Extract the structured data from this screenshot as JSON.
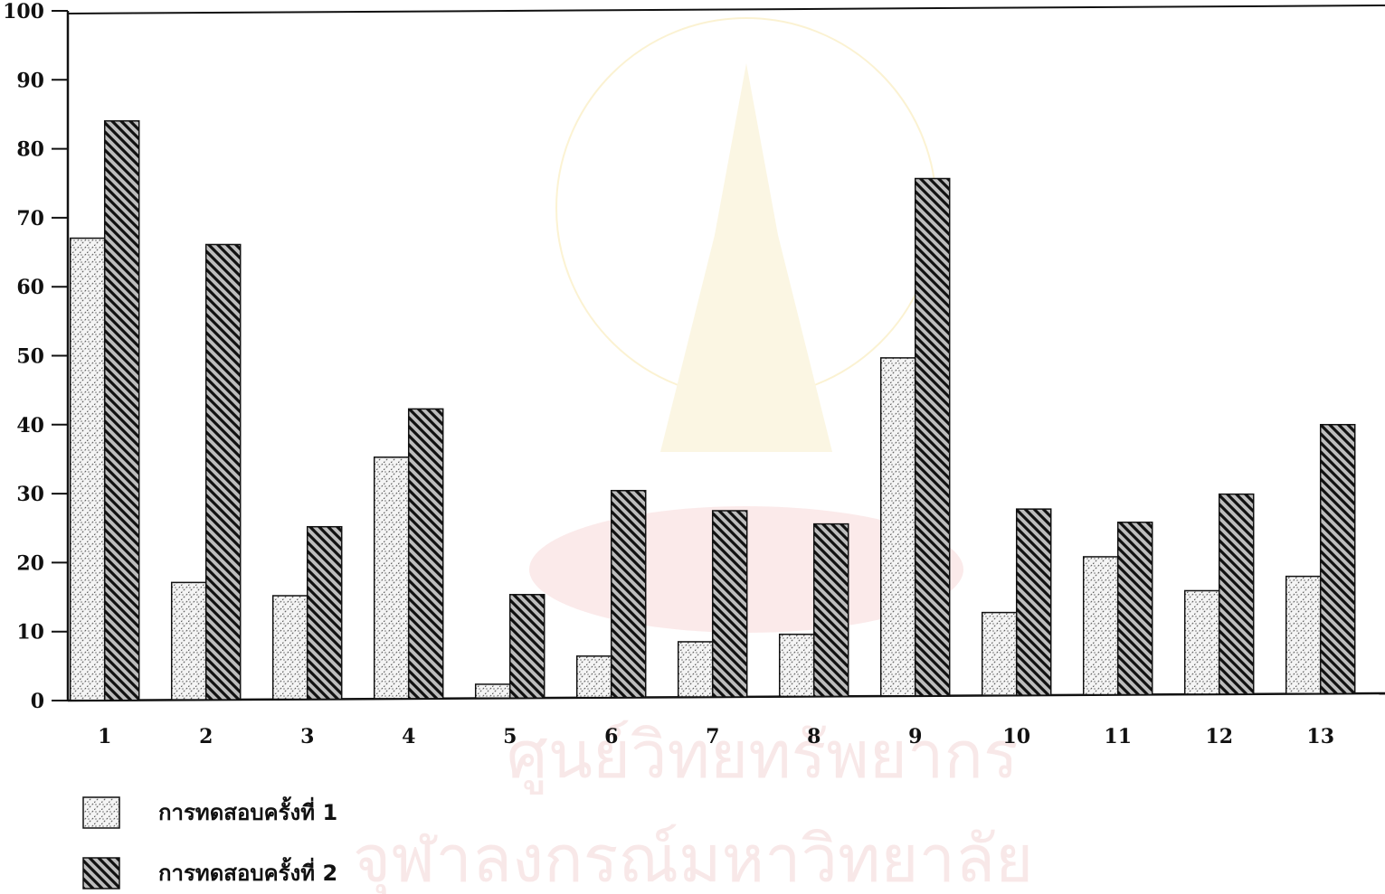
{
  "chart_data": {
    "type": "bar",
    "title": "",
    "xlabel": "",
    "ylabel": "",
    "ylim": [
      0,
      100
    ],
    "yticks": [
      "0",
      "10",
      "20",
      "30",
      "40",
      "50",
      "60",
      "70",
      "80",
      "90",
      "100"
    ],
    "categories": [
      "1",
      "2",
      "3",
      "4",
      "5",
      "6",
      "7",
      "8",
      "9",
      "10",
      "11",
      "12",
      "13"
    ],
    "series": [
      {
        "name": "การทดสอบครั้งที่  1",
        "pattern": "light-dotted-hatch",
        "values": [
          67,
          17,
          15,
          35,
          2,
          6,
          8,
          9,
          49,
          12,
          20,
          15,
          17
        ]
      },
      {
        "name": "การทดสอบครั้งที่  2",
        "pattern": "dark-diagonal-hatch",
        "values": [
          84,
          66,
          25,
          42,
          15,
          30,
          27,
          25,
          75,
          27,
          25,
          29,
          39
        ]
      }
    ],
    "legend_position": "bottom-left",
    "grid": false
  },
  "watermark": {
    "line1": "ศูนย์วิทยทรัพยากร",
    "line2": "จุฬาลงกรณ์มหาวิทยาลัย",
    "color": "#f0c8c8"
  }
}
